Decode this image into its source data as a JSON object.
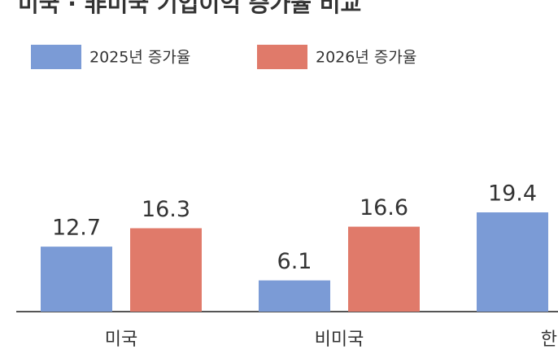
{
  "chart_data": {
    "type": "bar",
    "title": "미국 · 非미국 기업이익 증가율 비교",
    "categories": [
      "미국",
      "비미국",
      "한국"
    ],
    "series": [
      {
        "name": "2025년 증가율",
        "color": "#7b9bd6",
        "values": [
          12.7,
          6.1,
          19.4
        ]
      },
      {
        "name": "2026년 증가율",
        "color": "#e07a6a",
        "values": [
          16.3,
          16.6,
          null
        ]
      }
    ]
  }
}
